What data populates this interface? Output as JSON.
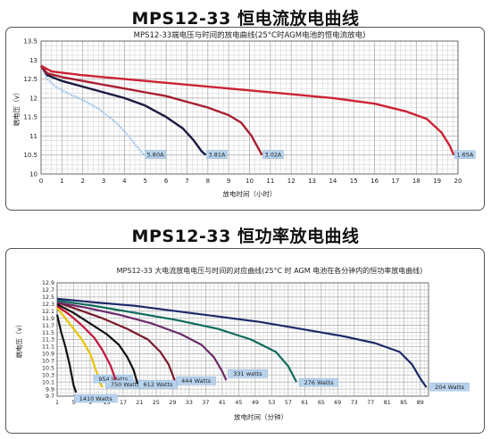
{
  "charts": {
    "c1": {
      "heading": "MPS12-33 恒电流放电曲线",
      "chart_data": {
        "type": "line",
        "title": "MPS12-33端电压与时间的放电曲线(25°C时AGM电池的恒电流放电)",
        "xlabel": "放电时间（小时）",
        "ylabel": "端电压（v）",
        "xlim": [
          0,
          20
        ],
        "ylim": [
          10,
          13.5
        ],
        "x_ticks": [
          "0",
          "1",
          "2",
          "3",
          "4",
          "5",
          "6",
          "7",
          "8",
          "9",
          "10",
          "11",
          "12",
          "13",
          "14",
          "15",
          "16",
          "17",
          "18",
          "19",
          "20"
        ],
        "y_ticks": [
          "10",
          "10.5",
          "11",
          "11.5",
          "12",
          "12.5",
          "13",
          "13.5"
        ],
        "grid": true,
        "series": [
          {
            "name": "5.80A",
            "color": "#9bc4ec",
            "points": [
              [
                0,
                12.85
              ],
              [
                0.3,
                12.5
              ],
              [
                0.7,
                12.3
              ],
              [
                1.2,
                12.15
              ],
              [
                2,
                11.95
              ],
              [
                2.8,
                11.7
              ],
              [
                3.6,
                11.35
              ],
              [
                4.2,
                11.0
              ],
              [
                4.7,
                10.65
              ],
              [
                4.95,
                10.5
              ]
            ]
          },
          {
            "name": "3.81A",
            "color": "#1a1a40",
            "points": [
              [
                0,
                12.85
              ],
              [
                0.3,
                12.6
              ],
              [
                1,
                12.45
              ],
              [
                2,
                12.3
              ],
              [
                3,
                12.15
              ],
              [
                4,
                12.0
              ],
              [
                5,
                11.8
              ],
              [
                6,
                11.5
              ],
              [
                6.8,
                11.2
              ],
              [
                7.3,
                10.9
              ],
              [
                7.7,
                10.6
              ],
              [
                7.9,
                10.5
              ]
            ]
          },
          {
            "name": "3.02A",
            "color": "#a81e30",
            "points": [
              [
                0,
                12.85
              ],
              [
                0.3,
                12.65
              ],
              [
                1,
                12.55
              ],
              [
                2,
                12.45
              ],
              [
                3,
                12.35
              ],
              [
                4,
                12.25
              ],
              [
                5,
                12.15
              ],
              [
                6,
                12.05
              ],
              [
                7,
                11.9
              ],
              [
                8,
                11.75
              ],
              [
                9,
                11.55
              ],
              [
                9.6,
                11.35
              ],
              [
                10.1,
                11.0
              ],
              [
                10.4,
                10.7
              ],
              [
                10.6,
                10.5
              ]
            ]
          },
          {
            "name": "1.65A",
            "color": "#cc2233",
            "points": [
              [
                0,
                12.85
              ],
              [
                0.5,
                12.7
              ],
              [
                2,
                12.6
              ],
              [
                4,
                12.5
              ],
              [
                6,
                12.4
              ],
              [
                8,
                12.3
              ],
              [
                10,
                12.2
              ],
              [
                12,
                12.1
              ],
              [
                14,
                12.0
              ],
              [
                16,
                11.85
              ],
              [
                17.5,
                11.65
              ],
              [
                18.5,
                11.45
              ],
              [
                19.2,
                11.1
              ],
              [
                19.6,
                10.75
              ],
              [
                19.8,
                10.5
              ]
            ]
          }
        ]
      }
    },
    "c2": {
      "heading": "MPS12-33 恒功率放电曲线",
      "chart_data": {
        "type": "line",
        "title": "MPS12-33 大电流放电电压与时间的对应曲线(25°C 时 AGM 电池在各分钟内的恒功率放电曲线)",
        "xlabel": "放电时间（分钟）",
        "ylabel": "端电压（v）",
        "ylim": [
          9.7,
          12.9
        ],
        "x_ticks": [
          "1",
          "5",
          "9",
          "13",
          "17",
          "21",
          "25",
          "29",
          "33",
          "37",
          "41",
          "45",
          "49",
          "53",
          "57",
          "61",
          "65",
          "69",
          "73",
          "77",
          "81",
          "85",
          "89"
        ],
        "y_ticks": [
          "12.9",
          "12.7",
          "12.5",
          "12.3",
          "12.1",
          "11.9",
          "11.7",
          "11.5",
          "11.3",
          "11.1",
          "10.9",
          "10.7",
          "10.5",
          "10.3",
          "10.1",
          "9.9",
          "9.7"
        ],
        "grid": true,
        "series": [
          {
            "name": "1410 Watts",
            "color": "#111111",
            "points": [
              [
                1,
                12.0
              ],
              [
                2,
                11.5
              ],
              [
                3,
                11.1
              ],
              [
                4,
                10.6
              ],
              [
                5,
                10.0
              ],
              [
                5.6,
                9.8
              ]
            ]
          },
          {
            "name": "954 Watts",
            "color": "#e8c400",
            "points": [
              [
                1,
                12.2
              ],
              [
                3,
                11.9
              ],
              [
                5,
                11.6
              ],
              [
                7,
                11.3
              ],
              [
                9,
                10.9
              ],
              [
                10.5,
                10.4
              ],
              [
                11.5,
                10.05
              ],
              [
                12,
                9.95
              ]
            ]
          },
          {
            "name": "750 Watts",
            "color": "#c0143c",
            "points": [
              [
                1,
                12.25
              ],
              [
                4,
                12.0
              ],
              [
                7,
                11.7
              ],
              [
                10,
                11.35
              ],
              [
                12,
                11.0
              ],
              [
                14,
                10.55
              ],
              [
                15.2,
                10.15
              ],
              [
                15.8,
                10.0
              ]
            ]
          },
          {
            "name": "612 Watts",
            "color": "#111111",
            "points": [
              [
                1,
                12.3
              ],
              [
                5,
                12.05
              ],
              [
                9,
                11.75
              ],
              [
                13,
                11.45
              ],
              [
                16,
                11.15
              ],
              [
                18,
                10.8
              ],
              [
                19.5,
                10.45
              ],
              [
                20.5,
                10.05
              ]
            ]
          },
          {
            "name": "444 Watts",
            "color": "#7a1a2a",
            "points": [
              [
                1,
                12.35
              ],
              [
                6,
                12.15
              ],
              [
                12,
                11.9
              ],
              [
                18,
                11.6
              ],
              [
                23,
                11.3
              ],
              [
                26,
                10.95
              ],
              [
                28,
                10.6
              ],
              [
                29.5,
                10.15
              ]
            ]
          },
          {
            "name": "331 watts",
            "color": "#6a2a6a",
            "points": [
              [
                1,
                12.35
              ],
              [
                8,
                12.2
              ],
              [
                16,
                12.0
              ],
              [
                24,
                11.75
              ],
              [
                31,
                11.45
              ],
              [
                36,
                11.15
              ],
              [
                39,
                10.8
              ],
              [
                41,
                10.4
              ],
              [
                42,
                10.15
              ]
            ]
          },
          {
            "name": "276 Watts",
            "color": "#0d6b5a",
            "points": [
              [
                1,
                12.4
              ],
              [
                10,
                12.25
              ],
              [
                20,
                12.05
              ],
              [
                30,
                11.85
              ],
              [
                40,
                11.6
              ],
              [
                48,
                11.3
              ],
              [
                54,
                10.95
              ],
              [
                57,
                10.55
              ],
              [
                59,
                10.1
              ]
            ]
          },
          {
            "name": "204 Watts",
            "color": "#1c2a6a",
            "points": [
              [
                1,
                12.45
              ],
              [
                10,
                12.35
              ],
              [
                20,
                12.25
              ],
              [
                30,
                12.1
              ],
              [
                40,
                11.95
              ],
              [
                50,
                11.8
              ],
              [
                60,
                11.6
              ],
              [
                70,
                11.4
              ],
              [
                78,
                11.2
              ],
              [
                84,
                10.95
              ],
              [
                87,
                10.6
              ],
              [
                89,
                10.2
              ],
              [
                90.5,
                9.95
              ]
            ]
          }
        ]
      }
    }
  }
}
